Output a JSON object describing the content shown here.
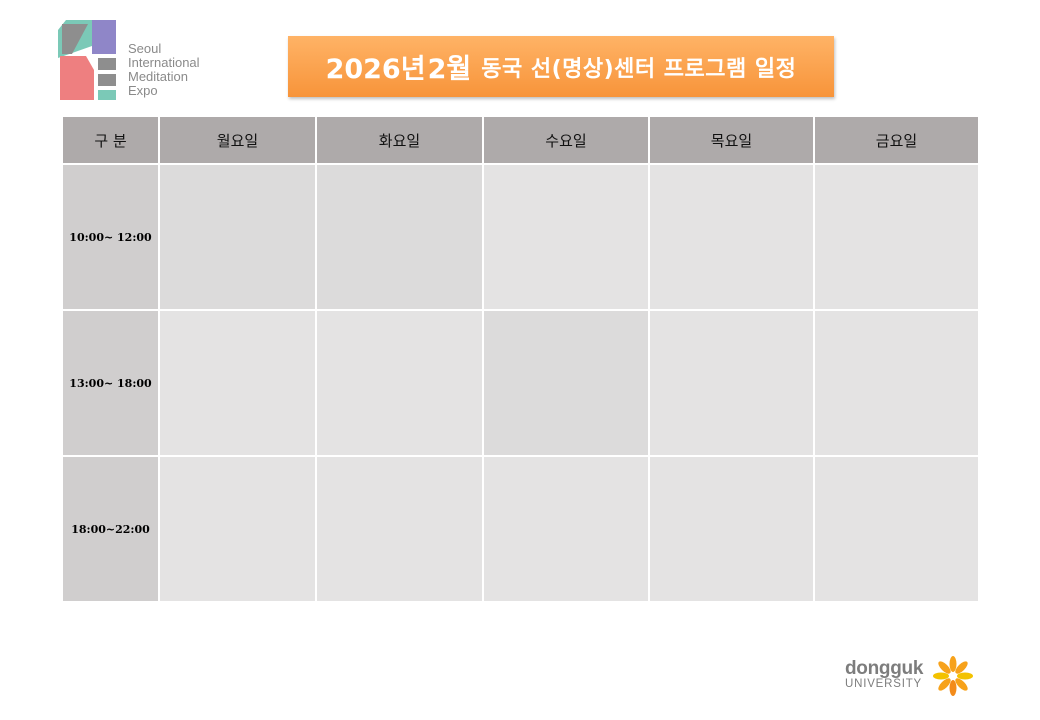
{
  "logo": {
    "lines": [
      "Seoul",
      "International",
      "Meditation",
      "Expo"
    ]
  },
  "title": {
    "year": "2026년",
    "month": "2월",
    "rest": "동국 선(명상)센터 프로그램 일정"
  },
  "schedule": {
    "headers": [
      "구 분",
      "월요일",
      "화요일",
      "수요일",
      "목요일",
      "금요일"
    ],
    "time_slots": [
      "10:00~ 12:00",
      "13:00~ 18:00",
      "18:00~22:00"
    ]
  },
  "university": {
    "name": "dongguk",
    "sub": "UNIVERSITY"
  },
  "colors": {
    "title_orange": "#f7943a",
    "header_gray": "#aeaaaa",
    "time_gray": "#d0cece",
    "cell_gray": "#e4e3e3"
  }
}
